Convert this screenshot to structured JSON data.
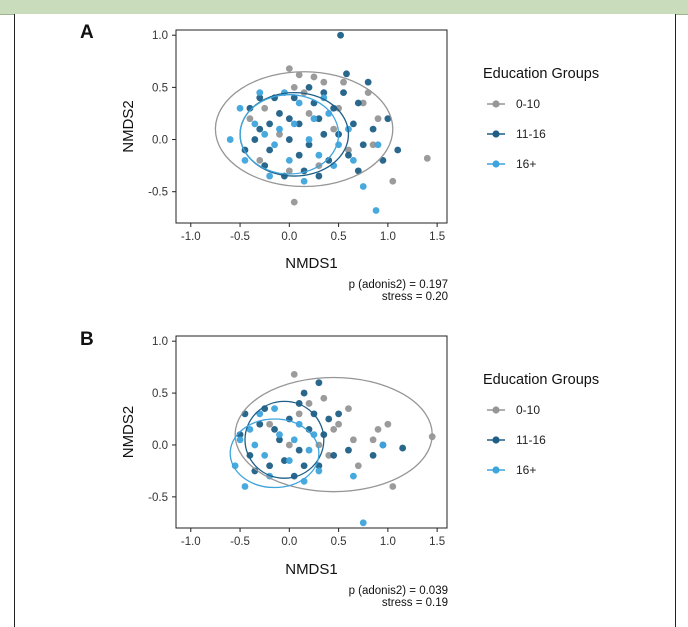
{
  "colors": {
    "g010": "#969696",
    "g1116": "#1f5f87",
    "g16": "#3da4dc"
  },
  "chart_data": [
    {
      "type": "scatter",
      "panel_label": "A",
      "xlabel": "NMDS1",
      "ylabel": "NMDS2",
      "xlim": [
        -1.15,
        1.6
      ],
      "ylim": [
        -0.8,
        1.05
      ],
      "xticks": [
        "-1.0",
        "-0.5",
        "0.0",
        "0.5",
        "1.0",
        "1.5"
      ],
      "yticks": [
        "-0.5",
        "0.0",
        "0.5",
        "1.0"
      ],
      "legend_title": "Education Groups",
      "legend_placement": "right",
      "annotations": [
        "p (adonis2) = 0.197",
        "stress = 0.20"
      ],
      "series": [
        {
          "name": "0-10",
          "color": "#969696",
          "ellipse": {
            "cx": 0.15,
            "cy": 0.1,
            "rx": 0.9,
            "ry": 0.55
          },
          "points": [
            [
              0.0,
              0.68
            ],
            [
              0.1,
              0.62
            ],
            [
              0.35,
              0.55
            ],
            [
              0.05,
              0.5
            ],
            [
              0.55,
              0.55
            ],
            [
              0.75,
              0.35
            ],
            [
              0.9,
              0.2
            ],
            [
              0.85,
              -0.05
            ],
            [
              1.05,
              -0.4
            ],
            [
              1.4,
              -0.18
            ],
            [
              0.05,
              -0.6
            ],
            [
              -0.25,
              0.3
            ],
            [
              -0.1,
              0.05
            ],
            [
              0.2,
              0.25
            ],
            [
              0.45,
              0.1
            ],
            [
              0.3,
              -0.25
            ],
            [
              -0.3,
              -0.2
            ],
            [
              0.6,
              -0.1
            ],
            [
              0.8,
              0.45
            ],
            [
              0.15,
              0.45
            ],
            [
              -0.4,
              0.2
            ],
            [
              0.5,
              0.3
            ],
            [
              0.0,
              -0.3
            ],
            [
              0.25,
              0.6
            ]
          ]
        },
        {
          "name": "11-16",
          "color": "#1f5f87",
          "ellipse": {
            "cx": 0.05,
            "cy": 0.05,
            "rx": 0.55,
            "ry": 0.4
          },
          "points": [
            [
              0.52,
              1.0
            ],
            [
              0.58,
              0.63
            ],
            [
              0.35,
              0.45
            ],
            [
              0.7,
              0.35
            ],
            [
              1.1,
              -0.1
            ],
            [
              1.0,
              0.2
            ],
            [
              0.95,
              -0.2
            ],
            [
              -0.4,
              0.3
            ],
            [
              -0.3,
              0.1
            ],
            [
              -0.2,
              -0.1
            ],
            [
              -0.1,
              0.25
            ],
            [
              0.0,
              0.0
            ],
            [
              0.1,
              0.15
            ],
            [
              0.2,
              -0.05
            ],
            [
              0.3,
              0.2
            ],
            [
              0.4,
              -0.2
            ],
            [
              0.5,
              0.05
            ],
            [
              0.6,
              -0.15
            ],
            [
              0.15,
              -0.3
            ],
            [
              -0.05,
              -0.35
            ],
            [
              -0.25,
              -0.25
            ],
            [
              -0.35,
              0.0
            ],
            [
              -0.15,
              0.4
            ],
            [
              0.05,
              0.4
            ],
            [
              0.25,
              0.35
            ],
            [
              0.45,
              0.3
            ],
            [
              0.65,
              0.15
            ],
            [
              0.75,
              -0.05
            ],
            [
              0.85,
              0.1
            ],
            [
              -0.45,
              -0.1
            ],
            [
              0.1,
              -0.15
            ],
            [
              0.35,
              0.05
            ],
            [
              -0.2,
              0.15
            ],
            [
              0.55,
              0.45
            ],
            [
              0.2,
              0.5
            ],
            [
              0.0,
              0.2
            ],
            [
              -0.3,
              0.4
            ],
            [
              0.3,
              -0.35
            ],
            [
              0.7,
              -0.3
            ],
            [
              0.8,
              0.55
            ]
          ]
        },
        {
          "name": "16+",
          "color": "#3da4dc",
          "ellipse": {
            "cx": 0.0,
            "cy": 0.05,
            "rx": 0.5,
            "ry": 0.38
          },
          "points": [
            [
              -0.6,
              0.0
            ],
            [
              -0.5,
              0.3
            ],
            [
              -0.45,
              -0.2
            ],
            [
              -0.3,
              0.45
            ],
            [
              -0.2,
              -0.35
            ],
            [
              -0.1,
              0.1
            ],
            [
              0.0,
              -0.2
            ],
            [
              0.1,
              0.35
            ],
            [
              0.2,
              0.0
            ],
            [
              0.3,
              -0.15
            ],
            [
              0.4,
              0.25
            ],
            [
              0.5,
              -0.05
            ],
            [
              -0.35,
              0.15
            ],
            [
              -0.15,
              -0.05
            ],
            [
              0.05,
              0.15
            ],
            [
              0.25,
              0.2
            ],
            [
              0.15,
              -0.4
            ],
            [
              -0.05,
              0.45
            ],
            [
              0.35,
              0.4
            ],
            [
              0.6,
              0.1
            ],
            [
              0.75,
              -0.45
            ],
            [
              0.88,
              -0.68
            ],
            [
              0.9,
              -0.05
            ],
            [
              -0.25,
              0.05
            ],
            [
              0.45,
              -0.25
            ],
            [
              0.65,
              -0.2
            ]
          ]
        }
      ]
    },
    {
      "type": "scatter",
      "panel_label": "B",
      "xlabel": "NMDS1",
      "ylabel": "NMDS2",
      "xlim": [
        -1.15,
        1.6
      ],
      "ylim": [
        -0.8,
        1.05
      ],
      "xticks": [
        "-1.0",
        "-0.5",
        "0.0",
        "0.5",
        "1.0",
        "1.5"
      ],
      "yticks": [
        "-0.5",
        "0.0",
        "0.5",
        "1.0"
      ],
      "legend_title": "Education Groups",
      "legend_placement": "right",
      "annotations": [
        "p (adonis2) = 0.039",
        "stress = 0.19"
      ],
      "series": [
        {
          "name": "0-10",
          "color": "#969696",
          "ellipse": {
            "cx": 0.45,
            "cy": 0.1,
            "rx": 1.0,
            "ry": 0.55
          },
          "points": [
            [
              0.05,
              0.68
            ],
            [
              0.35,
              0.45
            ],
            [
              0.1,
              0.3
            ],
            [
              0.6,
              0.35
            ],
            [
              0.9,
              0.15
            ],
            [
              1.0,
              0.2
            ],
            [
              1.45,
              0.08
            ],
            [
              1.05,
              -0.4
            ],
            [
              0.45,
              0.15
            ],
            [
              0.3,
              0.0
            ],
            [
              0.7,
              -0.2
            ],
            [
              0.2,
              0.4
            ],
            [
              -0.2,
              0.2
            ],
            [
              0.5,
              0.2
            ],
            [
              0.85,
              0.05
            ],
            [
              0.0,
              0.0
            ],
            [
              0.65,
              0.05
            ],
            [
              0.4,
              -0.1
            ]
          ]
        },
        {
          "name": "11-16",
          "color": "#1f5f87",
          "ellipse": {
            "cx": -0.05,
            "cy": 0.05,
            "rx": 0.4,
            "ry": 0.37
          },
          "points": [
            [
              0.3,
              0.6
            ],
            [
              0.15,
              0.5
            ],
            [
              0.4,
              0.25
            ],
            [
              0.6,
              -0.05
            ],
            [
              0.95,
              0.0
            ],
            [
              1.15,
              -0.03
            ],
            [
              0.85,
              -0.1
            ],
            [
              -0.5,
              0.1
            ],
            [
              -0.4,
              -0.1
            ],
            [
              -0.3,
              0.2
            ],
            [
              -0.2,
              -0.2
            ],
            [
              -0.1,
              0.05
            ],
            [
              0.0,
              0.25
            ],
            [
              0.1,
              -0.05
            ],
            [
              0.2,
              0.15
            ],
            [
              0.3,
              -0.2
            ],
            [
              -0.25,
              0.35
            ],
            [
              0.05,
              -0.3
            ],
            [
              -0.35,
              -0.25
            ],
            [
              0.25,
              0.3
            ],
            [
              0.35,
              0.1
            ],
            [
              -0.15,
              0.15
            ],
            [
              0.1,
              0.4
            ],
            [
              -0.05,
              -0.15
            ],
            [
              0.45,
              -0.1
            ],
            [
              0.5,
              0.3
            ],
            [
              -0.45,
              0.3
            ],
            [
              0.15,
              -0.2
            ]
          ]
        },
        {
          "name": "16+",
          "color": "#3da4dc",
          "ellipse": {
            "cx": -0.15,
            "cy": -0.08,
            "rx": 0.45,
            "ry": 0.33
          },
          "points": [
            [
              -0.55,
              -0.2
            ],
            [
              -0.45,
              -0.4
            ],
            [
              -0.35,
              0.0
            ],
            [
              -0.2,
              -0.3
            ],
            [
              -0.1,
              0.1
            ],
            [
              0.0,
              -0.15
            ],
            [
              0.1,
              0.2
            ],
            [
              0.2,
              -0.05
            ],
            [
              -0.3,
              0.3
            ],
            [
              -0.15,
              0.35
            ],
            [
              0.05,
              0.05
            ],
            [
              0.25,
              0.1
            ],
            [
              0.3,
              -0.25
            ],
            [
              -0.4,
              0.15
            ],
            [
              -0.25,
              -0.1
            ],
            [
              0.75,
              -0.75
            ],
            [
              0.95,
              0.0
            ],
            [
              0.65,
              -0.3
            ],
            [
              0.15,
              -0.35
            ],
            [
              -0.5,
              0.05
            ]
          ]
        }
      ]
    }
  ]
}
